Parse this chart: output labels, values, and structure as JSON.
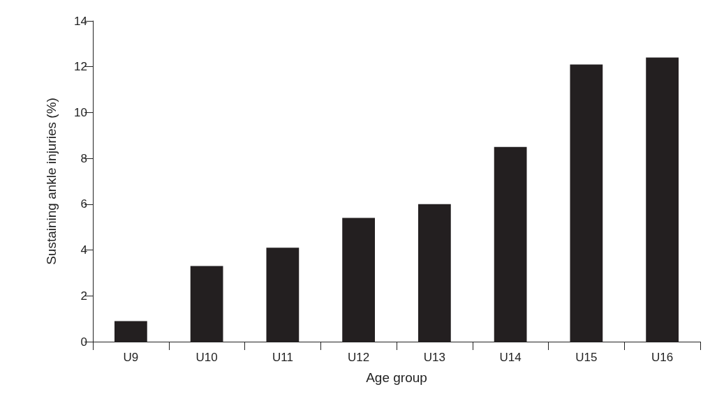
{
  "chart_data": {
    "type": "bar",
    "xlabel": "Age group",
    "ylabel": "Sustaining ankle injuries (%)",
    "categories": [
      "U9",
      "U10",
      "U11",
      "U12",
      "U13",
      "U14",
      "U15",
      "U16"
    ],
    "values": [
      0.9,
      3.3,
      4.1,
      5.4,
      6.0,
      8.5,
      12.1,
      12.4
    ],
    "color": "#231f20",
    "ylim": [
      0,
      14
    ],
    "yticks": [
      0,
      2,
      4,
      6,
      8,
      10,
      12,
      14
    ],
    "grid": false
  }
}
